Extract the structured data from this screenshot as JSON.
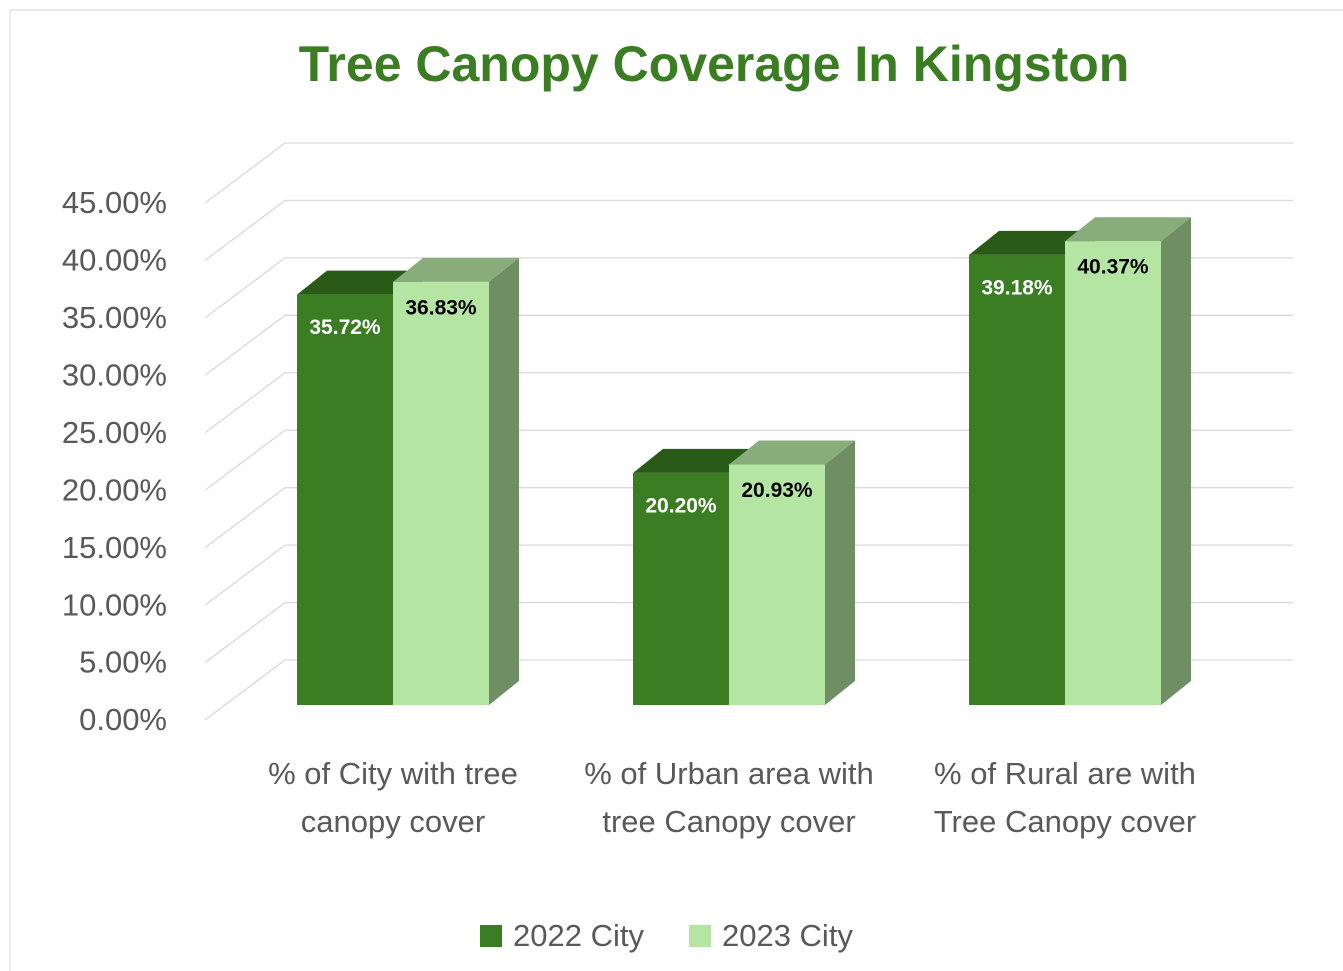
{
  "chart_data": {
    "type": "bar3d",
    "title": "Tree Canopy Coverage In Kingston",
    "categories": [
      "% of City with tree canopy cover",
      "% of Urban area with tree Canopy cover",
      "% of Rural are with Tree Canopy cover"
    ],
    "series": [
      {
        "name": "2022 City",
        "color": "#3a7d22",
        "values": [
          35.72,
          20.2,
          39.18
        ],
        "value_labels": [
          "35.72%",
          "20.20%",
          "39.18%"
        ]
      },
      {
        "name": "2023 City",
        "color": "#b5e5a2",
        "values": [
          36.83,
          20.93,
          40.37
        ],
        "value_labels": [
          "36.83%",
          "20.93%",
          "40.37%"
        ]
      }
    ],
    "ylim": [
      0,
      45
    ],
    "yticks": [
      {
        "value": 0,
        "label": "0.00%"
      },
      {
        "value": 5,
        "label": "5.00%"
      },
      {
        "value": 10,
        "label": "10.00%"
      },
      {
        "value": 15,
        "label": "15.00%"
      },
      {
        "value": 20,
        "label": "20.00%"
      },
      {
        "value": 25,
        "label": "25.00%"
      },
      {
        "value": 30,
        "label": "30.00%"
      },
      {
        "value": 35,
        "label": "35.00%"
      },
      {
        "value": 40,
        "label": "40.00%"
      },
      {
        "value": 45,
        "label": "45.00%"
      }
    ],
    "grid": true,
    "legend": "bottom"
  }
}
